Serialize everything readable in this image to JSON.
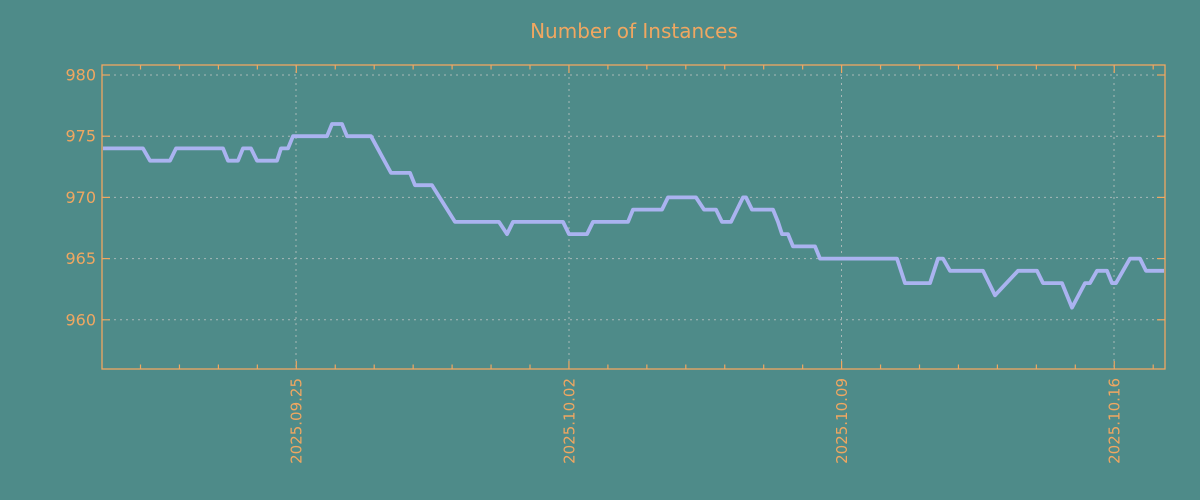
{
  "title": "Number of Instances",
  "colors": {
    "background": "#4e8b89",
    "accent_orange": "#f0a761",
    "line": "#aab3f0",
    "grid": "#a8b8b8"
  },
  "chart_data": {
    "type": "line",
    "title": "Number of Instances",
    "xlabel": "",
    "ylabel": "",
    "ylim": [
      956,
      981
    ],
    "grid": "dashed-both-axes",
    "legend": "none",
    "y_ticks": [
      960,
      965,
      970,
      975,
      980
    ],
    "x_tick_labels": [
      "2025.09.25",
      "2025.10.02",
      "2025.10.09",
      "2025.10.16"
    ],
    "x_minor_ticks_per_major": 7,
    "series": [
      {
        "name": "instances",
        "note": "piecewise-linear breakpoints read off the plot; first value = x pixel position, second = instance count",
        "points": [
          [
            103,
            974
          ],
          [
            143,
            974
          ],
          [
            150,
            973
          ],
          [
            170,
            973
          ],
          [
            176,
            974
          ],
          [
            223,
            974
          ],
          [
            228,
            973
          ],
          [
            238,
            973
          ],
          [
            243,
            974
          ],
          [
            251,
            974
          ],
          [
            257,
            973
          ],
          [
            277,
            973
          ],
          [
            281,
            974
          ],
          [
            288,
            974
          ],
          [
            293,
            975
          ],
          [
            327,
            975
          ],
          [
            332,
            976
          ],
          [
            342,
            976
          ],
          [
            347,
            975
          ],
          [
            371,
            975
          ],
          [
            391,
            972
          ],
          [
            410,
            972
          ],
          [
            415,
            971
          ],
          [
            432,
            971
          ],
          [
            455,
            968
          ],
          [
            499,
            968
          ],
          [
            507,
            967
          ],
          [
            513,
            968
          ],
          [
            563,
            968
          ],
          [
            569,
            967
          ],
          [
            587,
            967
          ],
          [
            593,
            968
          ],
          [
            628,
            968
          ],
          [
            633,
            969
          ],
          [
            662,
            969
          ],
          [
            668,
            970
          ],
          [
            696,
            970
          ],
          [
            704,
            969
          ],
          [
            716,
            969
          ],
          [
            722,
            968
          ],
          [
            731,
            968
          ],
          [
            743,
            970
          ],
          [
            746,
            970
          ],
          [
            752,
            969
          ],
          [
            773,
            969
          ],
          [
            778,
            968
          ],
          [
            782,
            967
          ],
          [
            788,
            967
          ],
          [
            793,
            966
          ],
          [
            815,
            966
          ],
          [
            820,
            965
          ],
          [
            897,
            965
          ],
          [
            905,
            963
          ],
          [
            930,
            963
          ],
          [
            938,
            965
          ],
          [
            943,
            965
          ],
          [
            950,
            964
          ],
          [
            983,
            964
          ],
          [
            995,
            962
          ],
          [
            1018,
            964
          ],
          [
            1037,
            964
          ],
          [
            1043,
            963
          ],
          [
            1062,
            963
          ],
          [
            1072,
            961
          ],
          [
            1085,
            963
          ],
          [
            1090,
            963
          ],
          [
            1097,
            964
          ],
          [
            1107,
            964
          ],
          [
            1112,
            963
          ],
          [
            1116,
            963
          ],
          [
            1130,
            965
          ],
          [
            1140,
            965
          ],
          [
            1146,
            964
          ],
          [
            1164,
            964
          ]
        ]
      }
    ]
  }
}
